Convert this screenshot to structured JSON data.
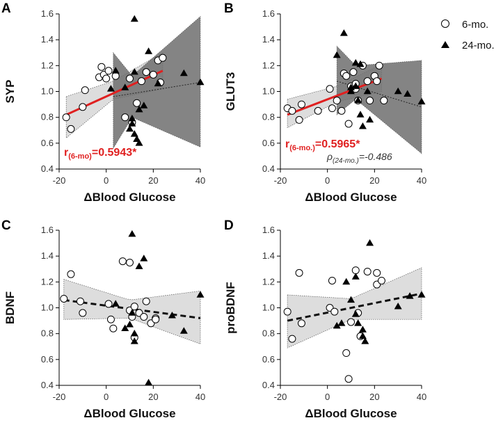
{
  "legend": {
    "items": [
      {
        "label": "6-mo.",
        "marker": "circle"
      },
      {
        "label": "24-mo.",
        "marker": "triangle"
      }
    ]
  },
  "colors": {
    "fit_line_6mo": "#e02020",
    "band_6mo": "#d9d9d9",
    "band_24mo": "#6e6e6e",
    "band_pooled": "#d9d9d9",
    "stat_text": "#e02020"
  },
  "chart_data": [
    {
      "panel": "A",
      "type": "scatter",
      "ylabel": "SYP",
      "xlabel": "ΔBlood Glucose",
      "xlim": [
        -20,
        40
      ],
      "ylim": [
        0.4,
        1.6
      ],
      "xticks": [
        "-20",
        "0",
        "20",
        "40"
      ],
      "yticks": [
        "0.4",
        "0.6",
        "0.8",
        "1.0",
        "1.2",
        "1.4",
        "1.6"
      ],
      "series": [
        {
          "name": "6-mo.",
          "points": [
            [
              -17,
              0.8
            ],
            [
              -15,
              0.71
            ],
            [
              -10,
              0.88
            ],
            [
              -9,
              1.01
            ],
            [
              -3,
              1.11
            ],
            [
              -2,
              1.19
            ],
            [
              -1,
              1.13
            ],
            [
              0,
              1.1
            ],
            [
              1,
              1.16
            ],
            [
              4,
              1.12
            ],
            [
              8,
              0.8
            ],
            [
              10,
              1.1
            ],
            [
              11,
              0.76
            ],
            [
              13,
              0.91
            ],
            [
              15,
              1.08
            ],
            [
              17,
              1.15
            ],
            [
              20,
              1.13
            ],
            [
              22,
              1.24
            ],
            [
              23,
              1.07
            ],
            [
              24,
              1.26
            ]
          ]
        },
        {
          "name": "24-mo.",
          "points": [
            [
              2,
              1.02
            ],
            [
              4,
              1.16
            ],
            [
              8,
              1.03
            ],
            [
              10,
              0.71
            ],
            [
              11,
              0.75
            ],
            [
              11,
              0.79
            ],
            [
              12,
              1.56
            ],
            [
              12,
              1.15
            ],
            [
              12,
              0.67
            ],
            [
              13,
              0.63
            ],
            [
              14,
              0.6
            ],
            [
              14,
              0.86
            ],
            [
              16,
              0.89
            ],
            [
              18,
              1.31
            ],
            [
              22,
              1.06
            ],
            [
              33,
              1.14
            ],
            [
              40,
              1.07
            ]
          ]
        }
      ],
      "fits": [
        {
          "series": "6-mo.",
          "style": "solid",
          "x": [
            -17,
            24
          ],
          "y": [
            0.82,
            1.16
          ],
          "band": {
            "x": [
              -17,
              3,
              24
            ],
            "lower": [
              0.64,
              0.94,
              1.02
            ],
            "upper": [
              0.96,
              1.08,
              1.3
            ]
          }
        },
        {
          "series": "24-mo.",
          "style": "dotted",
          "x": [
            3,
            40
          ],
          "y": [
            0.96,
            1.07
          ],
          "band": {
            "x": [
              3,
              11,
              40
            ],
            "lower": [
              0.56,
              0.8,
              0.57
            ],
            "upper": [
              1.3,
              1.12,
              1.58
            ]
          }
        }
      ],
      "annotations": [
        {
          "style": "main",
          "text": "r",
          "sub": "(6-mo)",
          "value": "=0.5943*"
        }
      ]
    },
    {
      "panel": "B",
      "type": "scatter",
      "ylabel": "GLUT3",
      "xlabel": "ΔBlood Glucose",
      "xlim": [
        -20,
        40
      ],
      "ylim": [
        0.4,
        1.6
      ],
      "xticks": [
        "-20",
        "0",
        "20",
        "40"
      ],
      "yticks": [
        "0.4",
        "0.6",
        "0.8",
        "1.0",
        "1.2",
        "1.4",
        "1.6"
      ],
      "series": [
        {
          "name": "6-mo.",
          "points": [
            [
              -17,
              0.87
            ],
            [
              -15,
              0.85
            ],
            [
              -12,
              0.78
            ],
            [
              -11,
              0.9
            ],
            [
              -4,
              0.85
            ],
            [
              1,
              1.02
            ],
            [
              2,
              0.87
            ],
            [
              4,
              0.93
            ],
            [
              6,
              0.85
            ],
            [
              7,
              1.14
            ],
            [
              8,
              1.12
            ],
            [
              9,
              0.75
            ],
            [
              10,
              1.04
            ],
            [
              11,
              1.15
            ],
            [
              12,
              1.06
            ],
            [
              12,
              1.02
            ],
            [
              13,
              0.93
            ],
            [
              15,
              1.2
            ],
            [
              17,
              1.08
            ],
            [
              18,
              0.93
            ],
            [
              20,
              1.12
            ],
            [
              21,
              1.08
            ],
            [
              22,
              1.2
            ],
            [
              24,
              0.93
            ]
          ]
        },
        {
          "name": "24-mo.",
          "points": [
            [
              4,
              1.28
            ],
            [
              7,
              1.45
            ],
            [
              10,
              1.03
            ],
            [
              10,
              1.0
            ],
            [
              12,
              1.22
            ],
            [
              12,
              1.04
            ],
            [
              13,
              0.93
            ],
            [
              14,
              1.21
            ],
            [
              14,
              0.82
            ],
            [
              15,
              0.73
            ],
            [
              17,
              1.0
            ],
            [
              18,
              0.78
            ],
            [
              30,
              1.0
            ],
            [
              34,
              0.98
            ],
            [
              40,
              0.92
            ]
          ]
        }
      ],
      "fits": [
        {
          "series": "6-mo.",
          "style": "solid",
          "x": [
            -17,
            23
          ],
          "y": [
            0.82,
            1.1
          ],
          "band": {
            "x": [
              -17,
              4,
              23
            ],
            "lower": [
              0.72,
              0.92,
              1.0
            ],
            "upper": [
              0.94,
              1.04,
              1.21
            ]
          }
        },
        {
          "series": "24-mo.",
          "style": "dotted",
          "x": [
            4,
            40
          ],
          "y": [
            1.08,
            0.88
          ],
          "band": {
            "x": [
              4,
              12,
              40
            ],
            "lower": [
              0.82,
              0.94,
              0.52
            ],
            "upper": [
              1.35,
              1.2,
              1.24
            ]
          }
        }
      ],
      "annotations": [
        {
          "style": "main",
          "text": "r",
          "sub": "(6-mo.)",
          "value": "=0.5965*"
        },
        {
          "style": "secondary",
          "text": "ρ",
          "sub": "(24-mo.)",
          "value": "=-0.486"
        }
      ]
    },
    {
      "panel": "C",
      "type": "scatter",
      "ylabel": "BDNF",
      "xlabel": "ΔBlood Glucose",
      "xlim": [
        -20,
        40
      ],
      "ylim": [
        0.4,
        1.6
      ],
      "xticks": [
        "-20",
        "0",
        "20",
        "40"
      ],
      "yticks": [
        "0.4",
        "0.6",
        "0.8",
        "1.0",
        "1.2",
        "1.4",
        "1.6"
      ],
      "series": [
        {
          "name": "6-mo.",
          "points": [
            [
              -18,
              1.07
            ],
            [
              -15,
              1.26
            ],
            [
              -11,
              1.05
            ],
            [
              -10,
              0.96
            ],
            [
              1,
              1.03
            ],
            [
              2,
              0.91
            ],
            [
              3,
              0.84
            ],
            [
              7,
              1.36
            ],
            [
              10,
              1.35
            ],
            [
              10,
              0.98
            ],
            [
              11,
              0.93
            ],
            [
              12,
              1.01
            ],
            [
              12,
              0.77
            ],
            [
              14,
              0.96
            ],
            [
              16,
              0.93
            ],
            [
              17,
              1.05
            ],
            [
              19,
              0.88
            ],
            [
              21,
              0.92
            ],
            [
              21,
              0.91
            ]
          ]
        },
        {
          "name": "24-mo.",
          "points": [
            [
              4,
              1.03
            ],
            [
              8,
              0.84
            ],
            [
              10,
              0.87
            ],
            [
              11,
              1.57
            ],
            [
              11,
              0.96
            ],
            [
              12,
              0.74
            ],
            [
              12,
              0.8
            ],
            [
              14,
              1.32
            ],
            [
              16,
              1.38
            ],
            [
              18,
              0.42
            ],
            [
              28,
              0.94
            ],
            [
              33,
              0.82
            ],
            [
              40,
              1.1
            ]
          ]
        }
      ],
      "fits": [
        {
          "series": "pooled",
          "style": "dashed",
          "x": [
            -18,
            40
          ],
          "y": [
            1.06,
            0.92
          ],
          "band": {
            "x": [
              -18,
              10,
              40
            ],
            "lower": [
              0.91,
              0.92,
              0.72
            ],
            "upper": [
              1.22,
              1.06,
              1.13
            ]
          }
        }
      ],
      "annotations": []
    },
    {
      "panel": "D",
      "type": "scatter",
      "ylabel": "proBDNF",
      "xlabel": "ΔBlood Glucose",
      "xlim": [
        -20,
        40
      ],
      "ylim": [
        0.4,
        1.6
      ],
      "xticks": [
        "-20",
        "0",
        "20",
        "40"
      ],
      "yticks": [
        "0.4",
        "0.6",
        "0.8",
        "1.0",
        "1.2",
        "1.4",
        "1.6"
      ],
      "series": [
        {
          "name": "6-mo.",
          "points": [
            [
              -17,
              0.97
            ],
            [
              -15,
              0.76
            ],
            [
              -12,
              1.27
            ],
            [
              -11,
              0.88
            ],
            [
              1,
              1.0
            ],
            [
              2,
              1.21
            ],
            [
              3,
              0.97
            ],
            [
              8,
              0.65
            ],
            [
              9,
              0.45
            ],
            [
              10,
              0.89
            ],
            [
              12,
              1.29
            ],
            [
              13,
              0.96
            ],
            [
              14,
              0.78
            ],
            [
              17,
              1.28
            ],
            [
              21,
              1.18
            ],
            [
              21,
              1.27
            ],
            [
              23,
              1.21
            ]
          ]
        },
        {
          "name": "24-mo.",
          "points": [
            [
              4,
              0.86
            ],
            [
              6,
              0.88
            ],
            [
              8,
              1.2
            ],
            [
              10,
              1.06
            ],
            [
              12,
              0.95
            ],
            [
              12,
              1.24
            ],
            [
              13,
              0.88
            ],
            [
              15,
              0.83
            ],
            [
              15,
              0.78
            ],
            [
              16,
              0.74
            ],
            [
              18,
              1.5
            ],
            [
              30,
              1.01
            ],
            [
              35,
              1.09
            ],
            [
              40,
              1.1
            ]
          ]
        }
      ],
      "fits": [
        {
          "series": "pooled",
          "style": "dashed",
          "x": [
            -17,
            40
          ],
          "y": [
            0.9,
            1.11
          ],
          "band": {
            "x": [
              -17,
              10,
              40
            ],
            "lower": [
              0.69,
              0.91,
              0.91
            ],
            "upper": [
              1.1,
              1.07,
              1.31
            ]
          }
        }
      ],
      "annotations": []
    }
  ]
}
